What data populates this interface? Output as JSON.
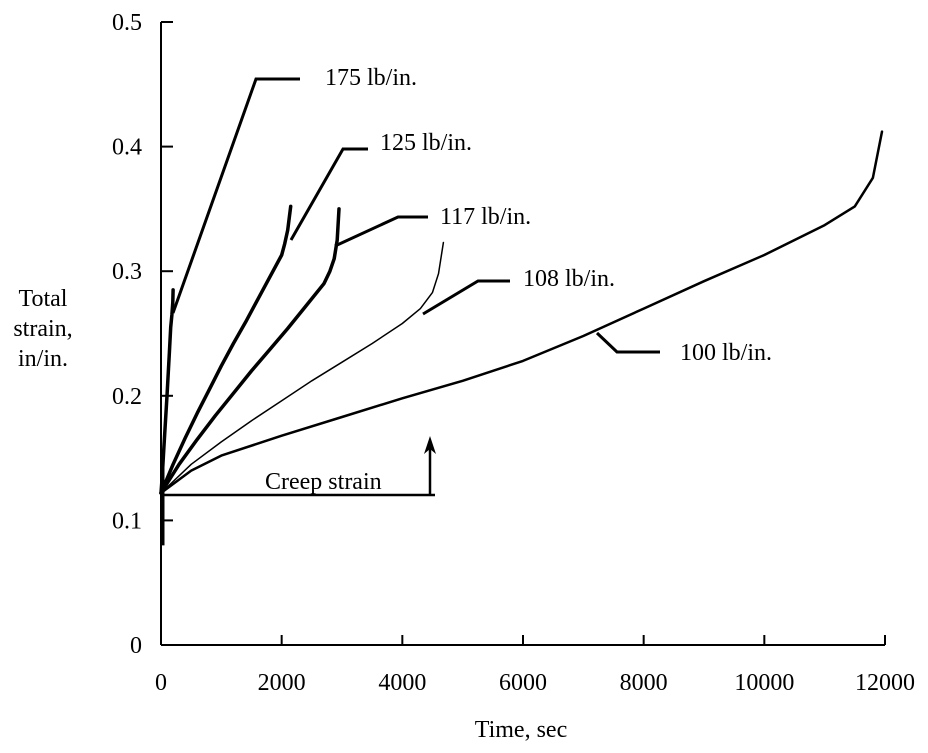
{
  "chart_data": {
    "type": "line",
    "xlabel": "Time, sec",
    "ylabel": [
      "Total",
      "strain,",
      "in/in."
    ],
    "xlim": [
      0,
      12000
    ],
    "ylim": [
      0,
      0.5
    ],
    "x_ticks": [
      0,
      2000,
      4000,
      6000,
      8000,
      10000,
      12000
    ],
    "y_ticks": [
      0,
      0.1,
      0.2,
      0.3,
      0.4,
      0.5
    ],
    "x_tick_labels": [
      "0",
      "2000",
      "4000",
      "6000",
      "8000",
      "10000",
      "12000"
    ],
    "y_tick_labels": [
      "0",
      "0.1",
      "0.2",
      "0.3",
      "0.4",
      "0.5"
    ],
    "grid": false,
    "series": [
      {
        "name": "175 lb/in.",
        "x": [
          0,
          20,
          50,
          100,
          140,
          160,
          180,
          195,
          200
        ],
        "y": [
          0.122,
          0.135,
          0.16,
          0.2,
          0.235,
          0.255,
          0.265,
          0.275,
          0.285
        ]
      },
      {
        "name": "125 lb/in.",
        "x": [
          0,
          200,
          400,
          600,
          800,
          1000,
          1200,
          1400,
          1600,
          1800,
          2000,
          2050,
          2100,
          2150
        ],
        "y": [
          0.122,
          0.145,
          0.166,
          0.186,
          0.205,
          0.224,
          0.242,
          0.259,
          0.277,
          0.295,
          0.313,
          0.322,
          0.333,
          0.352
        ]
      },
      {
        "name": "117 lb/in.",
        "x": [
          0,
          300,
          600,
          900,
          1200,
          1500,
          1800,
          2100,
          2400,
          2700,
          2800,
          2870,
          2920,
          2950
        ],
        "y": [
          0.122,
          0.145,
          0.165,
          0.184,
          0.202,
          0.22,
          0.237,
          0.254,
          0.272,
          0.29,
          0.3,
          0.31,
          0.325,
          0.35
        ]
      },
      {
        "name": "108 lb/in.",
        "x": [
          0,
          500,
          1000,
          1500,
          2000,
          2500,
          3000,
          3500,
          4000,
          4300,
          4500,
          4600,
          4680
        ],
        "y": [
          0.122,
          0.145,
          0.163,
          0.18,
          0.196,
          0.212,
          0.227,
          0.242,
          0.258,
          0.27,
          0.283,
          0.298,
          0.323
        ]
      },
      {
        "name": "100 lb/in.",
        "x": [
          0,
          500,
          1000,
          2000,
          3000,
          4000,
          5000,
          6000,
          7000,
          8000,
          9000,
          10000,
          11000,
          11500,
          11800,
          11950
        ],
        "y": [
          0.122,
          0.14,
          0.152,
          0.168,
          0.183,
          0.198,
          0.212,
          0.228,
          0.248,
          0.27,
          0.292,
          0.313,
          0.337,
          0.352,
          0.375,
          0.412
        ]
      }
    ],
    "annotations": [
      {
        "text": "Creep strain"
      }
    ]
  }
}
